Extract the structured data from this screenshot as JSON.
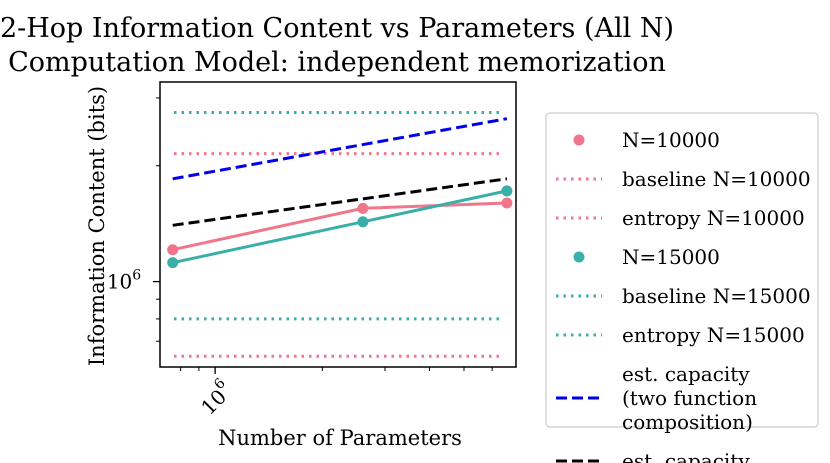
{
  "chart_data": {
    "type": "line",
    "title": "2-Hop Information Content vs Parameters (All N)",
    "subtitle": "Computation Model: independent memorization",
    "xlabel": "Number of Parameters",
    "ylabel": "Information Content (bits)",
    "xscale": "log",
    "yscale": "log",
    "xlim": [
      700000,
      7000000
    ],
    "ylim": [
      600000,
      3300000
    ],
    "x_ticks": [
      {
        "value": 1000000,
        "label": "10",
        "sup": "6"
      }
    ],
    "y_ticks": [
      {
        "value": 1000000,
        "label": "10",
        "sup": "6"
      }
    ],
    "grid": false,
    "legend_position": "outside-right",
    "series": [
      {
        "name": "N=10000",
        "kind": "line-marker",
        "color": "#f0768b",
        "x": [
          760000,
          2600000,
          6600000
        ],
        "y": [
          1210000,
          1550000,
          1600000
        ]
      },
      {
        "name": "baseline N=10000",
        "kind": "hline",
        "style": "dotted",
        "color": "#f0768b",
        "y": 2150000
      },
      {
        "name": "entropy N=10000",
        "kind": "hline",
        "style": "dotted",
        "color": "#f0768b",
        "y": 640000
      },
      {
        "name": "N=15000",
        "kind": "line-marker",
        "color": "#3aafa9",
        "x": [
          760000,
          2600000,
          6600000
        ],
        "y": [
          1120000,
          1430000,
          1720000
        ]
      },
      {
        "name": "baseline N=15000",
        "kind": "hline",
        "style": "dotted",
        "color": "#3aafa9",
        "y": 2750000
      },
      {
        "name": "entropy N=15000",
        "kind": "hline",
        "style": "dotted",
        "color": "#3aafa9",
        "y": 800000
      },
      {
        "name": "est. capacity (two function composition)",
        "kind": "line",
        "style": "dashed",
        "color": "#0000ee",
        "x": [
          760000,
          6600000
        ],
        "y": [
          1850000,
          2650000
        ]
      },
      {
        "name": "est. capacity",
        "kind": "line",
        "style": "dashed",
        "color": "#000000",
        "x": [
          760000,
          6600000
        ],
        "y": [
          1400000,
          1850000
        ]
      }
    ],
    "legend": [
      {
        "lines": [
          "N=10000"
        ],
        "series": 0
      },
      {
        "lines": [
          "baseline N=10000"
        ],
        "series": 1
      },
      {
        "lines": [
          "entropy N=10000"
        ],
        "series": 2
      },
      {
        "lines": [
          "N=15000"
        ],
        "series": 3
      },
      {
        "lines": [
          "baseline N=15000"
        ],
        "series": 4
      },
      {
        "lines": [
          "entropy N=15000"
        ],
        "series": 5
      },
      {
        "lines": [
          "est. capacity",
          "(two function",
          "composition)"
        ],
        "series": 6
      },
      {
        "lines": [
          "est. capacity"
        ],
        "series": 7
      }
    ]
  }
}
